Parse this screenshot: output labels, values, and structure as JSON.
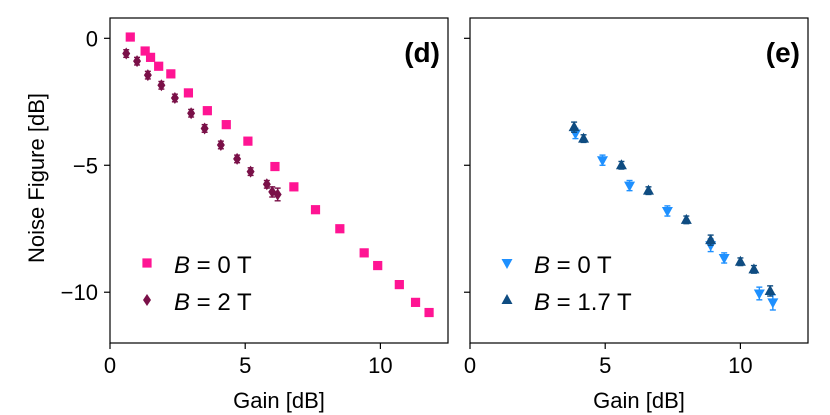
{
  "ylabel": "Noise Figure [dB]",
  "chart_data": [
    {
      "type": "scatter",
      "panel_label": "(d)",
      "xlabel": "Gain [dB]",
      "ylabel": "Noise Figure [dB]",
      "xlim": [
        0,
        12.5
      ],
      "ylim": [
        -12,
        0.8
      ],
      "xticks": [
        "0",
        "5",
        "10"
      ],
      "yticks": [
        "0",
        "−5",
        "−10"
      ],
      "legend_position": "bottom-left",
      "series": [
        {
          "name": "B = 0 T",
          "legend_var": "B",
          "legend_rest": " = 0 T",
          "color": "#ff1493",
          "marker": "square",
          "x": [
            0.75,
            1.3,
            1.5,
            1.8,
            2.25,
            2.9,
            3.6,
            4.3,
            5.1,
            6.1,
            6.8,
            7.6,
            8.5,
            9.4,
            9.9,
            10.7,
            11.3,
            11.8
          ],
          "y": [
            0.05,
            -0.5,
            -0.75,
            -1.1,
            -1.4,
            -2.15,
            -2.85,
            -3.4,
            -4.05,
            -5.05,
            -5.85,
            -6.75,
            -7.5,
            -8.45,
            -8.95,
            -9.7,
            -10.4,
            -10.8
          ],
          "err": [
            0.12,
            0.12,
            0.12,
            0.12,
            0.12,
            0.12,
            0.12,
            0.12,
            0.12,
            0.12,
            0.12,
            0.12,
            0.12,
            0.12,
            0.12,
            0.12,
            0.12,
            0.12
          ]
        },
        {
          "name": "B = 2 T",
          "legend_var": "B",
          "legend_rest": " = 2 T",
          "color": "#7a1048",
          "marker": "diamond",
          "x": [
            0.6,
            1.0,
            1.4,
            1.9,
            2.4,
            3.0,
            3.5,
            4.1,
            4.7,
            5.2,
            5.8,
            6.0,
            6.2
          ],
          "y": [
            -0.6,
            -0.9,
            -1.45,
            -1.85,
            -2.35,
            -2.95,
            -3.55,
            -4.2,
            -4.75,
            -5.25,
            -5.75,
            -6.05,
            -6.15
          ],
          "err": [
            0.15,
            0.15,
            0.15,
            0.15,
            0.15,
            0.15,
            0.15,
            0.15,
            0.15,
            0.15,
            0.15,
            0.2,
            0.25
          ]
        }
      ]
    },
    {
      "type": "scatter",
      "panel_label": "(e)",
      "xlabel": "Gain [dB]",
      "xlim": [
        0,
        12.5
      ],
      "ylim": [
        -12,
        0.8
      ],
      "xticks": [
        "0",
        "5",
        "10"
      ],
      "legend_position": "bottom-left",
      "series": [
        {
          "name": "B = 0 T",
          "legend_var": "B",
          "legend_rest": " = 0 T",
          "color": "#1e90ff",
          "marker": "triangle-down",
          "x": [
            3.9,
            4.9,
            5.9,
            7.3,
            8.9,
            9.4,
            10.7,
            11.2
          ],
          "y": [
            -3.75,
            -4.8,
            -5.8,
            -6.8,
            -8.15,
            -8.65,
            -10.05,
            -10.4
          ],
          "err": [
            0.2,
            0.2,
            0.2,
            0.2,
            0.25,
            0.2,
            0.25,
            0.3
          ]
        },
        {
          "name": "B = 1.7 T",
          "legend_var": "B",
          "legend_rest": " = 1.7 T",
          "color": "#0f4c81",
          "marker": "triangle-up",
          "x": [
            3.85,
            4.2,
            5.6,
            6.6,
            8.0,
            8.9,
            10.0,
            10.5,
            11.1
          ],
          "y": [
            -3.5,
            -3.95,
            -5.0,
            -6.0,
            -7.15,
            -7.95,
            -8.8,
            -9.1,
            -9.95
          ],
          "err": [
            0.2,
            0.15,
            0.15,
            0.15,
            0.15,
            0.2,
            0.15,
            0.15,
            0.2
          ]
        }
      ]
    }
  ]
}
